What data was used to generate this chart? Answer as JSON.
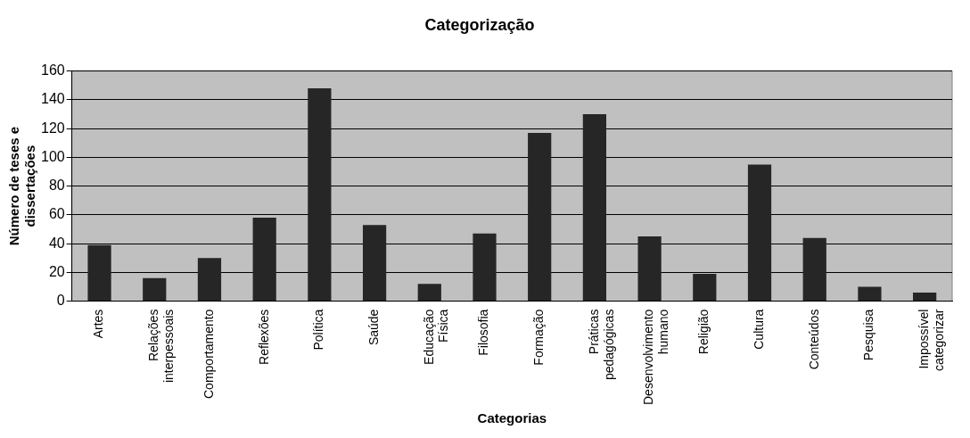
{
  "chart_data": {
    "type": "bar",
    "title": "Categorização",
    "xlabel": "Categorias",
    "ylabel": "Número de teses e dissertações",
    "categories": [
      "Artes",
      "Relações interpessoais",
      "Comportamento",
      "Reflexões",
      "Política",
      "Saúde",
      "Educação Física",
      "Filosofia",
      "Formação",
      "Práticas pedagógicas",
      "Desenvolvimento humano",
      "Religião",
      "Cultura",
      "Conteúdos",
      "Pesquisa",
      "Impossível categorizar"
    ],
    "values": [
      39,
      16,
      30,
      58,
      148,
      53,
      12,
      47,
      117,
      130,
      45,
      19,
      95,
      44,
      10,
      6
    ],
    "color": "#262626",
    "ylim": [
      0,
      160
    ],
    "yticks": [
      0,
      20,
      40,
      60,
      80,
      100,
      120,
      140,
      160
    ],
    "grid": "y",
    "legend": false
  }
}
